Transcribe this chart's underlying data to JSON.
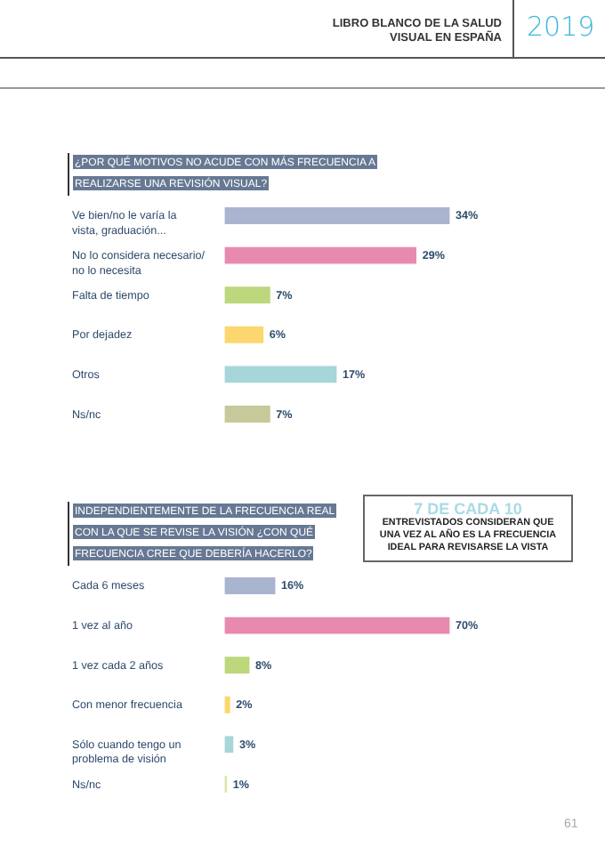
{
  "chart_data": [
    {
      "type": "bar",
      "orientation": "horizontal",
      "title": "¿POR QUÉ MOTIVOS NO ACUDE CON MÁS FRECUENCIA A REALIZARSE UNA REVISIÓN VISUAL?",
      "categories": [
        "Ve bien/no le varía la vista, graduación...",
        "No lo considera necesario/ no lo necesita",
        "Falta de tiempo",
        "Por dejadez",
        "Otros",
        "Ns/nc"
      ],
      "values": [
        34,
        29,
        7,
        6,
        17,
        7
      ],
      "value_labels": [
        "34%",
        "29%",
        "7%",
        "6%",
        "17%",
        "7%"
      ],
      "colors": [
        "#a9b4cf",
        "#e88aaf",
        "#bcd77c",
        "#fcd66e",
        "#a6d5da",
        "#c6c99a"
      ],
      "tick_labels": "y",
      "annotations": [
        "LIBRO BLANCO DE LA SALUD VISUAL EN ESPAÑA",
        "2019"
      ]
    },
    {
      "type": "bar",
      "orientation": "horizontal",
      "title": "INDEPENDIENTEMENTE DE LA FRECUENCIA REAL CON LA QUE SE REVISE LA VISIÓN ¿CON QUÉ FRECUENCIA CREE QUE DEBERÍA HACERLO?",
      "categories": [
        "Cada 6 meses",
        "1 vez al año",
        "1 vez cada 2 años",
        "Con menor frecuencia",
        "Sólo cuando tengo un problema de visión",
        "Ns/nc"
      ],
      "values": [
        16,
        70,
        8,
        2,
        3,
        1
      ],
      "value_labels": [
        "16%",
        "70%",
        "8%",
        "2%",
        "3%",
        "1%"
      ],
      "colors": [
        "#a9b4cf",
        "#e88aaf",
        "#bcd77c",
        "#fcd66e",
        "#a6d5da",
        "#d9e6a0"
      ],
      "tick_labels": "y",
      "annotations": [
        "7 DE CADA 10",
        "ENTREVISTADOS CONSIDERAN QUE UNA VEZ AL AÑO ES LA FRECUENCIA IDEAL PARA REVISARSE LA VISTA",
        "61"
      ]
    }
  ]
}
